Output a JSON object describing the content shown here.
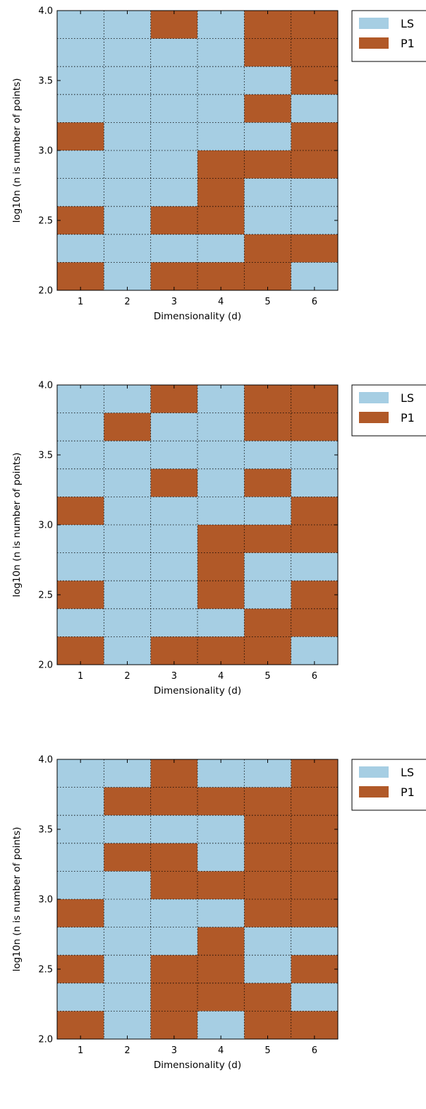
{
  "palette": {
    "LS": "#a6cee3",
    "P1": "#b15928"
  },
  "chart_data": [
    {
      "type": "heatmap",
      "xlabel": "Dimensionality (d)",
      "ylabel": "log10n (n is number of points)",
      "xlim": [
        0.5,
        6.5
      ],
      "ylim": [
        2.0,
        4.0
      ],
      "x_ticks": [
        "1",
        "2",
        "3",
        "4",
        "5",
        "6"
      ],
      "y_ticks": [
        "2.0",
        "2.5",
        "3.0",
        "3.5",
        "4.0"
      ],
      "legend": {
        "placement": "outside-right",
        "entries": [
          "LS",
          "P1"
        ]
      },
      "grid": true,
      "row_bins": [
        2.0,
        2.2,
        2.4,
        2.6,
        2.8,
        3.0,
        3.2,
        3.4,
        3.6,
        3.8,
        4.0
      ],
      "rows_top_to_bottom": [
        [
          "LS",
          "LS",
          "P1",
          "LS",
          "P1",
          "P1"
        ],
        [
          "LS",
          "LS",
          "LS",
          "LS",
          "P1",
          "P1"
        ],
        [
          "LS",
          "LS",
          "LS",
          "LS",
          "LS",
          "P1"
        ],
        [
          "LS",
          "LS",
          "LS",
          "LS",
          "P1",
          "LS"
        ],
        [
          "P1",
          "LS",
          "LS",
          "LS",
          "LS",
          "P1"
        ],
        [
          "LS",
          "LS",
          "LS",
          "P1",
          "P1",
          "P1"
        ],
        [
          "LS",
          "LS",
          "LS",
          "P1",
          "LS",
          "LS"
        ],
        [
          "P1",
          "LS",
          "P1",
          "P1",
          "LS",
          "LS"
        ],
        [
          "LS",
          "LS",
          "LS",
          "LS",
          "P1",
          "P1"
        ],
        [
          "P1",
          "LS",
          "P1",
          "P1",
          "P1",
          "LS"
        ]
      ]
    },
    {
      "type": "heatmap",
      "xlabel": "Dimensionality (d)",
      "ylabel": "log10n (n is number of points)",
      "xlim": [
        0.5,
        6.5
      ],
      "ylim": [
        2.0,
        4.0
      ],
      "x_ticks": [
        "1",
        "2",
        "3",
        "4",
        "5",
        "6"
      ],
      "y_ticks": [
        "2.0",
        "2.5",
        "3.0",
        "3.5",
        "4.0"
      ],
      "legend": {
        "placement": "outside-right",
        "entries": [
          "LS",
          "P1"
        ]
      },
      "grid": true,
      "row_bins": [
        2.0,
        2.2,
        2.4,
        2.6,
        2.8,
        3.0,
        3.2,
        3.4,
        3.6,
        3.8,
        4.0
      ],
      "rows_top_to_bottom": [
        [
          "LS",
          "LS",
          "P1",
          "LS",
          "P1",
          "P1"
        ],
        [
          "LS",
          "P1",
          "LS",
          "LS",
          "P1",
          "P1"
        ],
        [
          "LS",
          "LS",
          "LS",
          "LS",
          "LS",
          "LS"
        ],
        [
          "LS",
          "LS",
          "P1",
          "LS",
          "P1",
          "LS"
        ],
        [
          "P1",
          "LS",
          "LS",
          "LS",
          "LS",
          "P1"
        ],
        [
          "LS",
          "LS",
          "LS",
          "P1",
          "P1",
          "P1"
        ],
        [
          "LS",
          "LS",
          "LS",
          "P1",
          "LS",
          "LS"
        ],
        [
          "P1",
          "LS",
          "LS",
          "P1",
          "LS",
          "P1"
        ],
        [
          "LS",
          "LS",
          "LS",
          "LS",
          "P1",
          "P1"
        ],
        [
          "P1",
          "LS",
          "P1",
          "P1",
          "P1",
          "LS"
        ]
      ]
    },
    {
      "type": "heatmap",
      "xlabel": "Dimensionality (d)",
      "ylabel": "log10n (n is number of points)",
      "xlim": [
        0.5,
        6.5
      ],
      "ylim": [
        2.0,
        4.0
      ],
      "x_ticks": [
        "1",
        "2",
        "3",
        "4",
        "5",
        "6"
      ],
      "y_ticks": [
        "2.0",
        "2.5",
        "3.0",
        "3.5",
        "4.0"
      ],
      "legend": {
        "placement": "outside-right",
        "entries": [
          "LS",
          "P1"
        ]
      },
      "grid": true,
      "row_bins": [
        2.0,
        2.2,
        2.4,
        2.6,
        2.8,
        3.0,
        3.2,
        3.4,
        3.6,
        3.8,
        4.0
      ],
      "rows_top_to_bottom": [
        [
          "LS",
          "LS",
          "P1",
          "LS",
          "LS",
          "P1"
        ],
        [
          "LS",
          "P1",
          "P1",
          "P1",
          "P1",
          "P1"
        ],
        [
          "LS",
          "LS",
          "LS",
          "LS",
          "P1",
          "P1"
        ],
        [
          "LS",
          "P1",
          "P1",
          "LS",
          "P1",
          "P1"
        ],
        [
          "LS",
          "LS",
          "P1",
          "P1",
          "P1",
          "P1"
        ],
        [
          "P1",
          "LS",
          "LS",
          "LS",
          "P1",
          "P1"
        ],
        [
          "LS",
          "LS",
          "LS",
          "P1",
          "LS",
          "LS"
        ],
        [
          "P1",
          "LS",
          "P1",
          "P1",
          "LS",
          "P1"
        ],
        [
          "LS",
          "LS",
          "P1",
          "P1",
          "P1",
          "LS"
        ],
        [
          "P1",
          "LS",
          "P1",
          "LS",
          "P1",
          "P1"
        ]
      ]
    }
  ]
}
